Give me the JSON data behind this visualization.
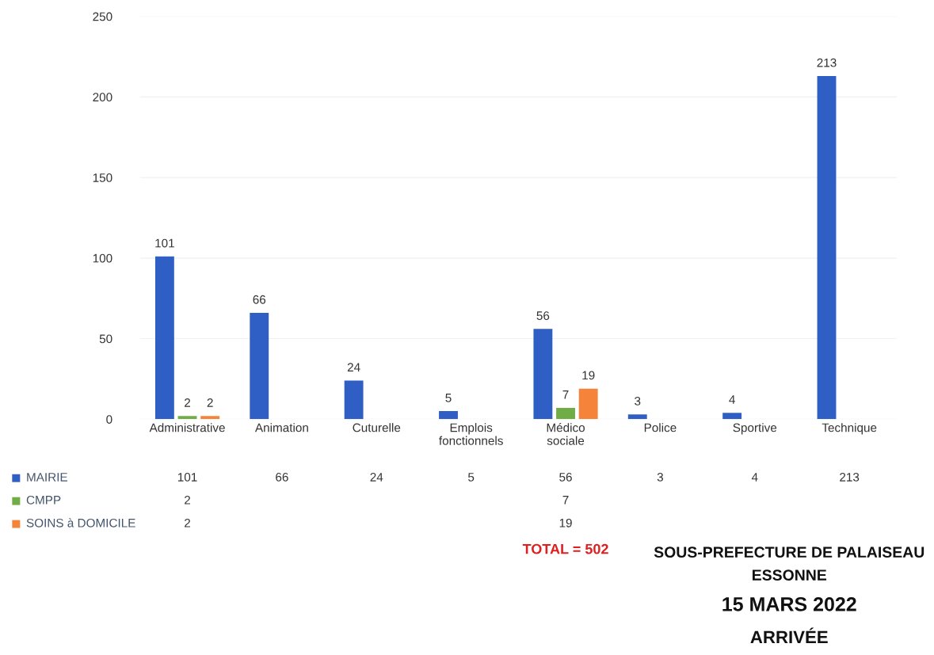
{
  "chart_data": {
    "type": "bar",
    "categories": [
      "Administrative",
      "Animation",
      "Cuturelle",
      "Emplois fonctionnels",
      "Médico sociale",
      "Police",
      "Sportive",
      "Technique"
    ],
    "series": [
      {
        "name": "MAIRIE",
        "color": "#2f5fc4",
        "values": [
          101,
          66,
          24,
          5,
          56,
          3,
          4,
          213
        ]
      },
      {
        "name": "CMPP",
        "color": "#70ad47",
        "values": [
          2,
          null,
          null,
          null,
          7,
          null,
          null,
          null
        ]
      },
      {
        "name": "SOINS à DOMICILE",
        "color": "#f5843a",
        "values": [
          2,
          null,
          null,
          null,
          19,
          null,
          null,
          null
        ]
      }
    ],
    "ylim": [
      0,
      250
    ],
    "yticks": [
      0,
      50,
      100,
      150,
      200,
      250
    ],
    "grid": "y",
    "legend": "bottom",
    "data_labels": true,
    "annotations": [
      "101",
      "2",
      "2",
      "66",
      "24",
      "5",
      "56",
      "7",
      "19",
      "3",
      "4",
      "213",
      "TOTAL = 502",
      "SOUS-PREFECTURE DE PALAISEAU",
      "ESSONNE",
      "15 MARS 2022",
      "ARRIVÉE"
    ]
  }
}
